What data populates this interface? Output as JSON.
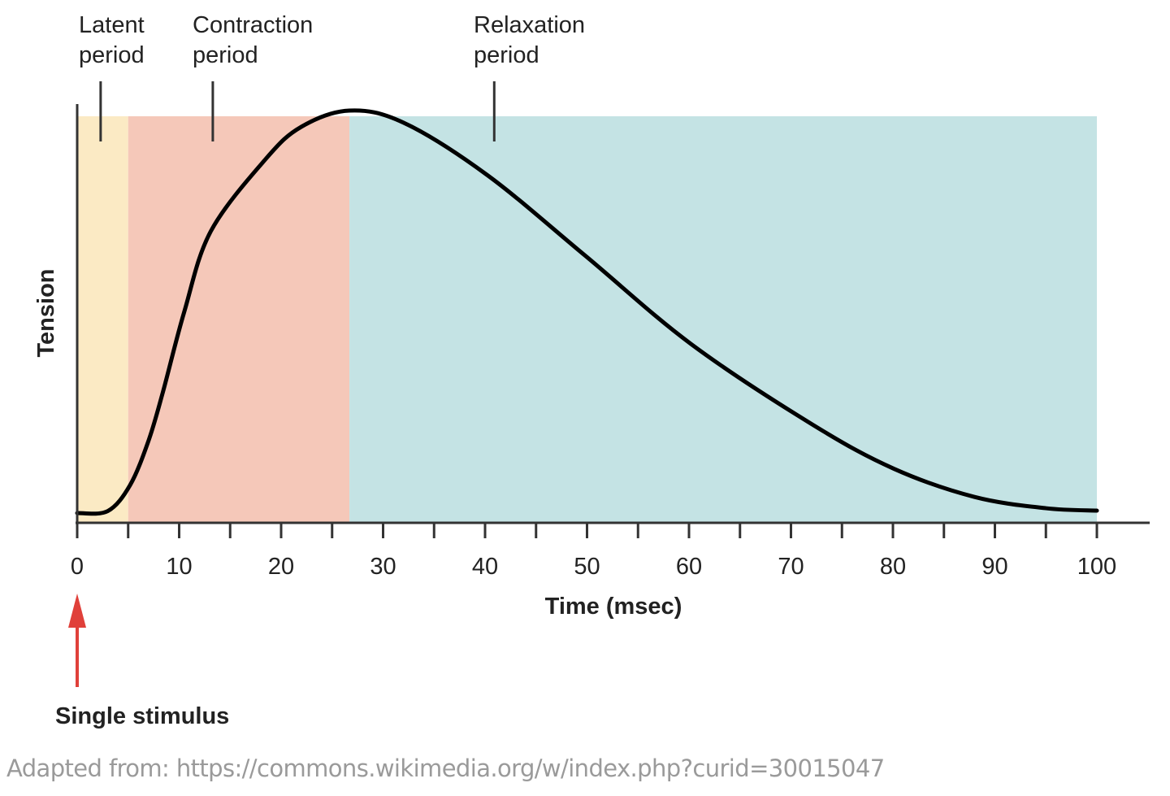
{
  "chart_data": {
    "type": "line",
    "title": "",
    "xlabel": "Time (msec)",
    "ylabel": "Tension",
    "xlim": [
      0,
      100
    ],
    "ylim": [
      0,
      1
    ],
    "x_ticks": [
      0,
      10,
      20,
      30,
      40,
      50,
      60,
      70,
      80,
      90,
      100
    ],
    "x_minor_tick_step": 5,
    "grid": false,
    "series": [
      {
        "points": [
          [
            0,
            0
          ],
          [
            3,
            0.005
          ],
          [
            5.2,
            0.07
          ],
          [
            7,
            0.18
          ],
          [
            8.4,
            0.3
          ],
          [
            10.5,
            0.5
          ],
          [
            13.1,
            0.7
          ],
          [
            18.5,
            0.88
          ],
          [
            22,
            0.96
          ],
          [
            26.7,
            1.0
          ],
          [
            32,
            0.97
          ],
          [
            40.2,
            0.84
          ],
          [
            49.8,
            0.64
          ],
          [
            60.2,
            0.42
          ],
          [
            72.1,
            0.22
          ],
          [
            80.1,
            0.11
          ],
          [
            88,
            0.04
          ],
          [
            95,
            0.012
          ],
          [
            100,
            0.006
          ]
        ],
        "color": "#000000"
      }
    ],
    "regions": [
      {
        "label": "Latent period",
        "label_lines": [
          "Latent",
          "period"
        ],
        "start": 0,
        "end": 5,
        "marker_at": 2.3,
        "color": "#fbeac4"
      },
      {
        "label": "Contraction period",
        "label_lines": [
          "Contraction",
          "period"
        ],
        "start": 5,
        "end": 26.7,
        "marker_at": 13.3,
        "color": "#f5c8b9"
      },
      {
        "label": "Relaxation period",
        "label_lines": [
          "Relaxation",
          "period"
        ],
        "start": 26.7,
        "end": 100,
        "marker_at": 40.9,
        "color": "#c4e3e4"
      }
    ],
    "annotations": [
      {
        "text": "Single stimulus",
        "at_x": 0,
        "arrow_color": "#e0403a"
      }
    ]
  },
  "caption": "Adapted from: https://commons.wikimedia.org/w/index.php?curid=30015047"
}
